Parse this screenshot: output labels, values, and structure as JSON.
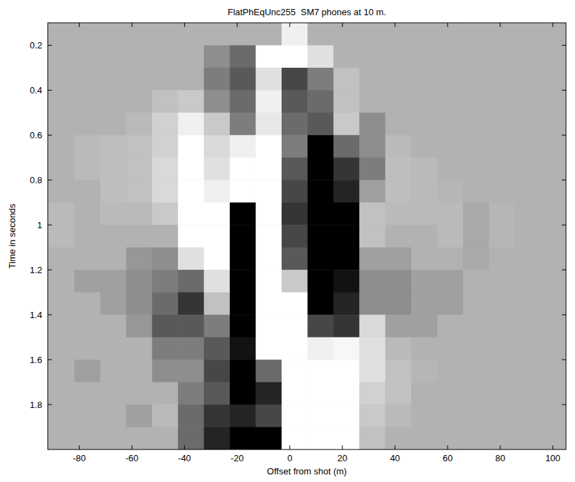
{
  "chart_data": {
    "type": "heatmap",
    "title": "FlatPhEqUnc255  SM7 phones at 10 m.",
    "x_label": "Offset from shot (m)",
    "y_label": "Time in seconds",
    "xlim": [
      -92,
      105
    ],
    "ylim": [
      0.1,
      2
    ],
    "xticks": [
      -80,
      -60,
      -40,
      -20,
      0,
      20,
      40,
      60,
      80,
      100
    ],
    "yticks": [
      0.2,
      0.4,
      0.6,
      0.8,
      1,
      1.2,
      1.4,
      1.6,
      1.8
    ],
    "clim": [
      -1,
      1
    ],
    "x_edges": [
      -91.75,
      -81.9,
      -72.05,
      -62.2,
      -52.35,
      -42.5,
      -32.65,
      -22.8,
      -12.95,
      -3.1,
      6.75,
      16.6,
      26.45,
      36.3,
      46.15,
      56,
      65.85,
      75.7,
      85.55,
      95.4,
      105.25
    ],
    "y_edges": [
      0.1,
      0.2,
      0.3,
      0.4,
      0.5,
      0.6,
      0.7,
      0.8,
      0.9,
      1,
      1.1,
      1.2,
      1.3,
      1.4,
      1.5,
      1.6,
      1.7,
      1.8,
      1.9,
      2
    ],
    "cells": [
      [
        0,
        0,
        0,
        0,
        0,
        0,
        0,
        0,
        0,
        0.8,
        0,
        0,
        0,
        0,
        0,
        0,
        0,
        0,
        0,
        0
      ],
      [
        0,
        0,
        0,
        0,
        0,
        0,
        -0.2,
        -0.4,
        1,
        1,
        0.6,
        0,
        0,
        0,
        0,
        0,
        0,
        0,
        0,
        0
      ],
      [
        0,
        0,
        0,
        0,
        0,
        0,
        -0.3,
        -0.5,
        0.6,
        -0.6,
        -0.3,
        0.2,
        0,
        0,
        0,
        0,
        0,
        0,
        0,
        0
      ],
      [
        0,
        0,
        0,
        0,
        0.2,
        0.3,
        -0.2,
        -0.4,
        0.8,
        -0.5,
        -0.4,
        0.2,
        0,
        0,
        0,
        0,
        0,
        0,
        0,
        0
      ],
      [
        0,
        0,
        0,
        0.1,
        0.4,
        0.8,
        0.3,
        -0.3,
        0.7,
        -0.4,
        -0.5,
        0.3,
        -0.2,
        0,
        0,
        0,
        0,
        0,
        0,
        0
      ],
      [
        0,
        0.1,
        0.15,
        0.2,
        0.4,
        1,
        0.5,
        0.8,
        1,
        -0.3,
        -1,
        -0.4,
        -0.2,
        0.1,
        0,
        0,
        0,
        0,
        0,
        0
      ],
      [
        0,
        0.1,
        0.15,
        0.2,
        0.5,
        1,
        0.6,
        1,
        1,
        -0.5,
        -1,
        -0.7,
        -0.3,
        0.15,
        0.1,
        0,
        0,
        0,
        0,
        0
      ],
      [
        0,
        0,
        0.15,
        0.2,
        0.5,
        1,
        0.8,
        1,
        1,
        -0.6,
        -1,
        -0.8,
        -0.1,
        0.15,
        0.1,
        0.05,
        0,
        0,
        0,
        0
      ],
      [
        0.1,
        0,
        0.1,
        0.1,
        0.3,
        1,
        1,
        -1,
        1,
        -0.7,
        -1,
        -1,
        0.2,
        0.1,
        0.1,
        0.1,
        -0.05,
        0.05,
        0,
        0
      ],
      [
        0.1,
        0,
        0,
        0,
        0,
        1,
        1,
        -1,
        1,
        -0.6,
        -1,
        -1,
        0.2,
        0,
        0,
        0.1,
        -0.05,
        0.05,
        0,
        0
      ],
      [
        0,
        0,
        0,
        -0.15,
        -0.2,
        0.6,
        1,
        -1,
        1,
        -0.5,
        -1,
        -1,
        -0.1,
        -0.1,
        0,
        0,
        -0.05,
        0,
        0,
        0
      ],
      [
        0,
        -0.1,
        -0.1,
        -0.2,
        -0.3,
        -0.4,
        0.6,
        -1,
        1,
        0.3,
        -1,
        -0.9,
        -0.2,
        -0.2,
        -0.1,
        -0.1,
        0,
        0,
        0,
        0
      ],
      [
        0,
        0,
        -0.1,
        -0.2,
        -0.4,
        -0.7,
        0.2,
        -1,
        1,
        1,
        -1,
        -0.8,
        -0.2,
        -0.2,
        -0.1,
        -0.1,
        0,
        0,
        0,
        0
      ],
      [
        0,
        0,
        0,
        -0.15,
        -0.5,
        -0.5,
        -0.3,
        -1,
        1,
        1,
        -0.6,
        -0.7,
        0.5,
        -0.1,
        -0.1,
        0,
        0,
        0,
        0,
        0
      ],
      [
        0,
        0,
        0,
        0,
        -0.3,
        -0.3,
        -0.5,
        -0.9,
        1,
        1,
        0.8,
        0.9,
        0.6,
        0.1,
        0,
        0,
        0,
        0,
        0,
        0
      ],
      [
        0,
        -0.1,
        0,
        0,
        -0.2,
        -0.2,
        -0.6,
        -1,
        -0.4,
        1,
        1,
        1,
        0.6,
        0.2,
        0.05,
        0,
        0,
        0,
        0,
        0
      ],
      [
        0,
        0,
        0,
        0,
        0,
        -0.3,
        -0.5,
        -1,
        -0.8,
        1,
        1,
        1,
        0.4,
        0.2,
        0,
        0,
        0,
        0,
        0,
        0
      ],
      [
        0,
        0,
        0,
        -0.1,
        0.1,
        -0.4,
        -0.7,
        -0.8,
        -0.6,
        1,
        1,
        1,
        0.3,
        0.1,
        0,
        0,
        0,
        0,
        0,
        0
      ],
      [
        0,
        0,
        0,
        0,
        0,
        -0.4,
        -0.8,
        -1,
        -1,
        1,
        1,
        1,
        0.2,
        0,
        0,
        0,
        0,
        0,
        0,
        0
      ]
    ]
  }
}
